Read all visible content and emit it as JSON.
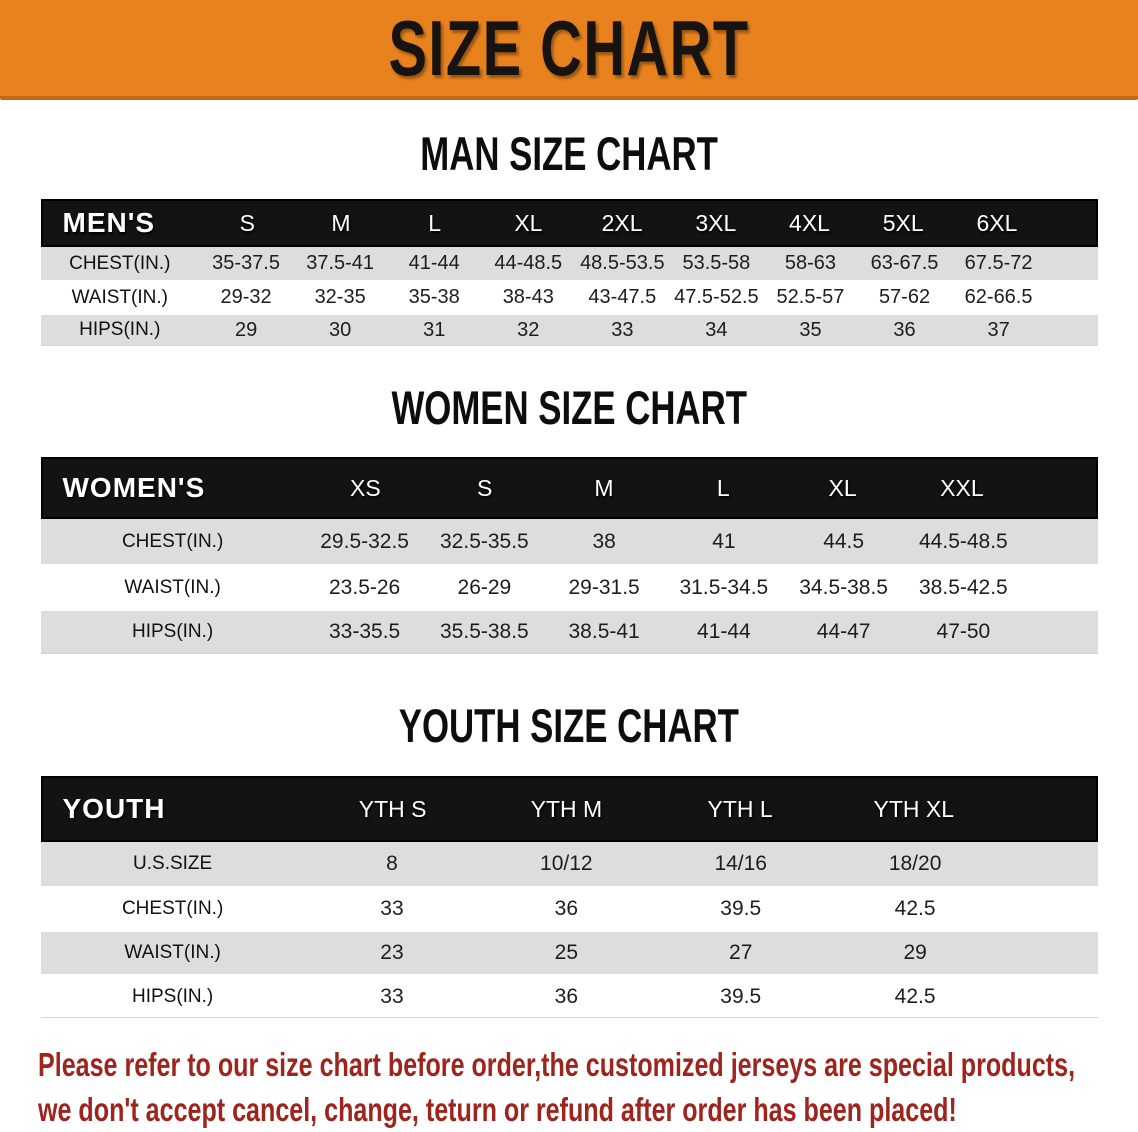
{
  "banner": {
    "title": "SIZE CHART"
  },
  "sections": [
    {
      "heading": "MAN SIZE CHART",
      "header_label": "MEN'S",
      "columns": [
        "S",
        "M",
        "L",
        "XL",
        "2XL",
        "3XL",
        "4XL",
        "5XL",
        "6XL"
      ],
      "rows": [
        {
          "label": "CHEST(IN.)",
          "values": [
            "35-37.5",
            "37.5-41",
            "41-44",
            "44-48.5",
            "48.5-53.5",
            "53.5-58",
            "58-63",
            "63-67.5",
            "67.5-72"
          ]
        },
        {
          "label": "WAIST(IN.)",
          "values": [
            "29-32",
            "32-35",
            "35-38",
            "38-43",
            "43-47.5",
            "47.5-52.5",
            "52.5-57",
            "57-62",
            "62-66.5"
          ]
        },
        {
          "label": "HIPS(IN.)",
          "values": [
            "29",
            "30",
            "31",
            "32",
            "33",
            "34",
            "35",
            "36",
            "37"
          ]
        }
      ]
    },
    {
      "heading": "WOMEN SIZE CHART",
      "header_label": "WOMEN'S",
      "columns": [
        "XS",
        "S",
        "M",
        "L",
        "XL",
        "XXL"
      ],
      "rows": [
        {
          "label": "CHEST(IN.)",
          "values": [
            "29.5-32.5",
            "32.5-35.5",
            "38",
            "41",
            "44.5",
            "44.5-48.5"
          ]
        },
        {
          "label": "WAIST(IN.)",
          "values": [
            "23.5-26",
            "26-29",
            "29-31.5",
            "31.5-34.5",
            "34.5-38.5",
            "38.5-42.5"
          ]
        },
        {
          "label": "HIPS(IN.)",
          "values": [
            "33-35.5",
            "35.5-38.5",
            "38.5-41",
            "41-44",
            "44-47",
            "47-50"
          ]
        }
      ]
    },
    {
      "heading": "YOUTH SIZE CHART",
      "header_label": "YOUTH",
      "columns": [
        "YTH S",
        "YTH M",
        "YTH L",
        "YTH XL"
      ],
      "rows": [
        {
          "label": "U.S.SIZE",
          "values": [
            "8",
            "10/12",
            "14/16",
            "18/20"
          ]
        },
        {
          "label": "CHEST(IN.)",
          "values": [
            "33",
            "36",
            "39.5",
            "42.5"
          ]
        },
        {
          "label": "WAIST(IN.)",
          "values": [
            "23",
            "25",
            "27",
            "29"
          ]
        },
        {
          "label": "HIPS(IN.)",
          "values": [
            "33",
            "36",
            "39.5",
            "42.5"
          ]
        }
      ]
    }
  ],
  "disclaimer": {
    "line1": "Please refer to our size chart before order,the customized jerseys are special products,",
    "line2": "we don't accept cancel, change, teturn or refund after order has been placed!"
  },
  "colors": {
    "banner_bg": "#E8821E",
    "banner_edge": "#C36711",
    "title_text": "#161311",
    "header_bar_bg": "#131313",
    "header_bar_text": "#FFFFFF",
    "row_gray": "#DDDDDD",
    "body_text": "#1D1D1D",
    "disclaimer_red": "#9E241E"
  }
}
